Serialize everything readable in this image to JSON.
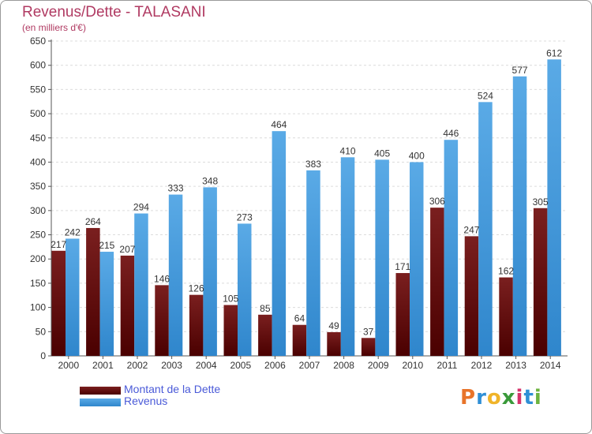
{
  "title": "Revenus/Dette - TALASANI",
  "subtitle": "(en milliers d'€)",
  "logo": {
    "letters": [
      "P",
      "r",
      "o",
      "x",
      "i",
      "t",
      "i"
    ],
    "colors": [
      "#e8742a",
      "#2f8fd6",
      "#f0b429",
      "#3a9a3a",
      "#d6336c",
      "#2f8fd6",
      "#6db33f"
    ]
  },
  "colors": {
    "dette": "#7a1f1f",
    "dette_dark": "#4a0000",
    "revenus": "#5aaae6",
    "revenus_dark": "#2f86cc",
    "title": "#b03a62",
    "legend_text": "#4a5ad8"
  },
  "chart_data": {
    "type": "bar",
    "categories": [
      "2000",
      "2001",
      "2002",
      "2003",
      "2004",
      "2005",
      "2006",
      "2007",
      "2008",
      "2009",
      "2010",
      "2011",
      "2012",
      "2013",
      "2014"
    ],
    "series": [
      {
        "name": "Montant de la Dette",
        "values": [
          217,
          264,
          207,
          146,
          126,
          105,
          85,
          64,
          49,
          37,
          171,
          306,
          247,
          162,
          305
        ]
      },
      {
        "name": "Revenus",
        "values": [
          242,
          215,
          294,
          333,
          348,
          273,
          464,
          383,
          410,
          405,
          400,
          446,
          524,
          577,
          612
        ]
      }
    ],
    "ylim": [
      0,
      650
    ],
    "yticks": [
      0,
      50,
      100,
      150,
      200,
      250,
      300,
      350,
      400,
      450,
      500,
      550,
      600,
      650
    ],
    "grid": true,
    "legend_position": "bottom-left"
  }
}
